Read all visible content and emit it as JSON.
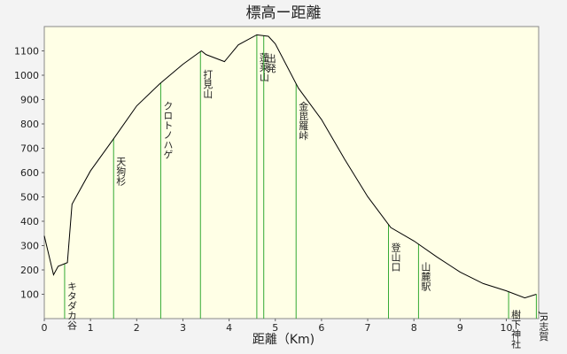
{
  "chart_data": {
    "type": "line",
    "title": "標高ー距離",
    "x_label": "距離（Km)",
    "x": [
      0,
      0.2,
      0.3,
      0.5,
      0.6,
      1.0,
      1.5,
      2.0,
      2.5,
      3.0,
      3.4,
      3.5,
      3.9,
      4.2,
      4.6,
      4.85,
      5.0,
      5.5,
      6.0,
      6.5,
      7.0,
      7.5,
      8.0,
      8.5,
      9.0,
      9.5,
      10.0,
      10.4,
      10.65
    ],
    "series": [
      {
        "name": "標高",
        "color": "#000000",
        "values": [
          340,
          180,
          215,
          230,
          470,
          607,
          739,
          874,
          965,
          1045,
          1100,
          1085,
          1056,
          1125,
          1166,
          1160,
          1129,
          947,
          818,
          655,
          501,
          374,
          319,
          253,
          191,
          144,
          114,
          85,
          100
        ]
      }
    ],
    "markers": [
      {
        "x": 0.44,
        "label": "キタダカ谷"
      },
      {
        "x": 1.5,
        "label": "天狗杉"
      },
      {
        "x": 2.52,
        "label": "クロトノハゲ"
      },
      {
        "x": 3.38,
        "label": "打見山"
      },
      {
        "x": 4.6,
        "label": "蓬莱山"
      },
      {
        "x": 4.75,
        "label": "出発"
      },
      {
        "x": 5.45,
        "label": "金毘羅峠"
      },
      {
        "x": 7.45,
        "label": "登山口"
      },
      {
        "x": 8.1,
        "label": "山麓駅"
      },
      {
        "x": 10.05,
        "label": "樹下神社"
      },
      {
        "x": 10.65,
        "label": "JR志賀"
      }
    ],
    "marker_color": "#33aa33",
    "xlim": [
      0,
      10.7
    ],
    "ylim": [
      0,
      1200
    ],
    "xticks": [
      0,
      1,
      2,
      3,
      4,
      5,
      6,
      7,
      8,
      9,
      10
    ],
    "yticks": [
      100,
      200,
      300,
      400,
      500,
      600,
      700,
      800,
      900,
      1000,
      1100
    ]
  }
}
